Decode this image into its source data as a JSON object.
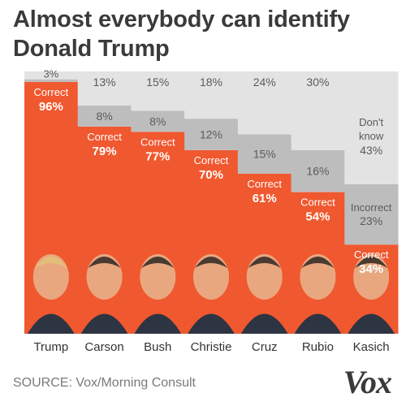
{
  "title": "Almost everybody can identify Donald Trump",
  "source": "SOURCE: Vox/Morning Consult",
  "logo": "Vox",
  "colors": {
    "correct": "#f0582f",
    "incorrect": "#bdbdbd",
    "dont_know": "#e3e3e3",
    "label_dark": "#5b5b5b",
    "label_light": "#ffffff"
  },
  "chart_data": {
    "type": "bar",
    "stacked": true,
    "ylim": [
      0,
      100
    ],
    "categories": [
      "Trump",
      "Carson",
      "Bush",
      "Christie",
      "Cruz",
      "Rubio",
      "Kasich"
    ],
    "series": [
      {
        "name": "Correct",
        "values": [
          96,
          79,
          77,
          70,
          61,
          54,
          34
        ]
      },
      {
        "name": "Incorrect",
        "values": [
          1,
          8,
          8,
          12,
          15,
          16,
          23
        ]
      },
      {
        "name": "Don't know",
        "values": [
          3,
          13,
          15,
          18,
          24,
          30,
          43
        ]
      }
    ],
    "annotations": {
      "correct_label": "Correct",
      "incorrect_label": "Incorrect",
      "dont_know_label_line1": "Don't",
      "dont_know_label_line2": "know"
    },
    "portraits": [
      "trump-portrait",
      "carson-portrait",
      "bush-portrait",
      "christie-portrait",
      "cruz-portrait",
      "rubio-portrait",
      "kasich-portrait"
    ]
  }
}
